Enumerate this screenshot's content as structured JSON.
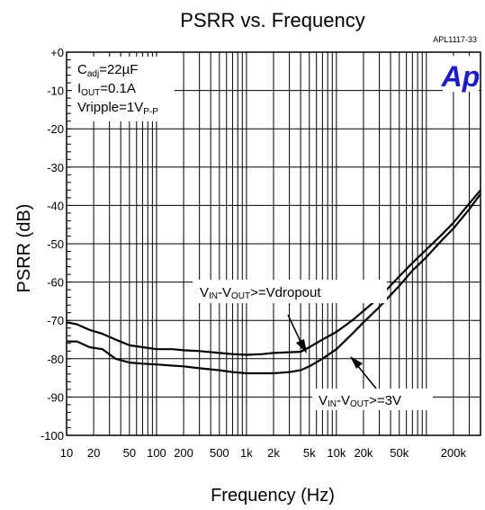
{
  "figure_ref": "APL1117-33",
  "logo_text": "Ap",
  "logo_color": "#1a1ad6",
  "conditions": [
    {
      "main": "C",
      "sub": "adj",
      "rest": "=22µF"
    },
    {
      "main": "I",
      "sub": "OUT",
      "rest": "=0.1A"
    },
    {
      "main": "Vripple=1V",
      "sub": "P-P",
      "rest": ""
    }
  ],
  "annotations": [
    {
      "main1": "V",
      "sub1": "IN",
      "main2": "-V",
      "sub2": "OUT",
      "rest": ">=Vdropout",
      "series": 0
    },
    {
      "main1": "V",
      "sub1": "IN",
      "main2": "-V",
      "sub2": "OUT",
      "rest": ">=3V",
      "series": 1
    }
  ],
  "chart_data": {
    "type": "line",
    "title": "PSRR vs. Frequency",
    "xlabel": "Frequency (Hz)",
    "ylabel": "PSRR (dB)",
    "x_scale": "log",
    "xlim": [
      10,
      400000
    ],
    "ylim": [
      -100,
      0
    ],
    "grid": true,
    "x_ticks": [
      {
        "value": 10,
        "label": "10"
      },
      {
        "value": 20,
        "label": "20"
      },
      {
        "value": 50,
        "label": "50"
      },
      {
        "value": 100,
        "label": "100"
      },
      {
        "value": 200,
        "label": "200"
      },
      {
        "value": 500,
        "label": "500"
      },
      {
        "value": 1000,
        "label": "1k"
      },
      {
        "value": 2000,
        "label": "2k"
      },
      {
        "value": 5000,
        "label": "5k"
      },
      {
        "value": 10000,
        "label": "10k"
      },
      {
        "value": 20000,
        "label": "20k"
      },
      {
        "value": 50000,
        "label": "50k"
      },
      {
        "value": 200000,
        "label": "200k"
      }
    ],
    "y_ticks": [
      {
        "value": 0,
        "label": "+0"
      },
      {
        "value": -10,
        "label": "-10"
      },
      {
        "value": -20,
        "label": "-20"
      },
      {
        "value": -30,
        "label": "-30"
      },
      {
        "value": -40,
        "label": "-40"
      },
      {
        "value": -50,
        "label": "-50"
      },
      {
        "value": -60,
        "label": "-60"
      },
      {
        "value": -70,
        "label": "-70"
      },
      {
        "value": -80,
        "label": "-80"
      },
      {
        "value": -90,
        "label": "-90"
      },
      {
        "value": -100,
        "label": "-100"
      }
    ],
    "series": [
      {
        "x": [
          10,
          13,
          18,
          25,
          35,
          50,
          70,
          100,
          150,
          200,
          300,
          500,
          700,
          1000,
          1500,
          2000,
          3000,
          4000,
          5000,
          7000,
          10000,
          15000,
          20000,
          30000,
          50000,
          70000,
          100000,
          150000,
          200000,
          300000,
          400000
        ],
        "y": [
          -70.5,
          -71,
          -72.5,
          -73.5,
          -75,
          -76.5,
          -77,
          -77.5,
          -77.5,
          -77.8,
          -78,
          -78.5,
          -78.8,
          -79,
          -78.8,
          -78.5,
          -78.3,
          -78.2,
          -77,
          -75,
          -73,
          -70,
          -67.5,
          -64,
          -58.5,
          -55,
          -51.5,
          -47.5,
          -44.5,
          -39.5,
          -36
        ]
      },
      {
        "x": [
          10,
          13,
          18,
          25,
          35,
          50,
          70,
          100,
          150,
          200,
          300,
          500,
          700,
          1000,
          1500,
          2000,
          3000,
          4000,
          5000,
          7000,
          10000,
          15000,
          20000,
          30000,
          50000,
          70000,
          100000,
          150000,
          200000,
          300000,
          400000
        ],
        "y": [
          -75.5,
          -75.5,
          -77,
          -77.5,
          -80,
          -81,
          -81.3,
          -81.5,
          -81.8,
          -82,
          -82.5,
          -83,
          -83.5,
          -83.8,
          -83.8,
          -83.8,
          -83.5,
          -83,
          -82,
          -80,
          -77.5,
          -73.5,
          -70.5,
          -66.5,
          -61,
          -57,
          -53.5,
          -49,
          -46,
          -41,
          -37
        ]
      }
    ]
  }
}
